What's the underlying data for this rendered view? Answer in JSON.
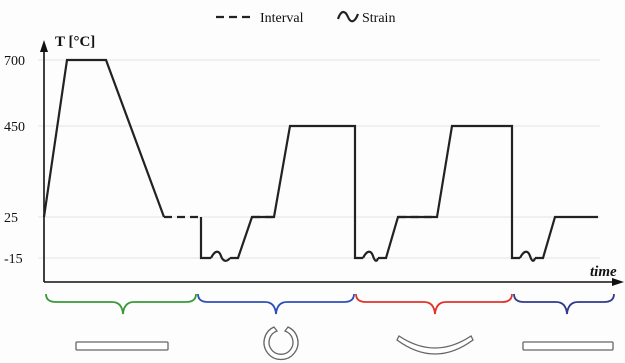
{
  "legend": {
    "interval_label": "Interval",
    "strain_label": "Strain"
  },
  "axes": {
    "y_label": "T [°C]",
    "x_label": "time",
    "y_ticks": [
      "700",
      "450",
      "25",
      "-15"
    ]
  },
  "colors": {
    "phase_1": "#3a9a3a",
    "phase_2": "#2f4fb8",
    "phase_3": "#e0332a",
    "phase_4": "#2f3a8e",
    "specimen_fill": "#ffffff",
    "specimen_stroke": "#666666"
  },
  "specimens": [
    "flat-bar",
    "ring",
    "bent-bar",
    "flat-bar"
  ]
}
